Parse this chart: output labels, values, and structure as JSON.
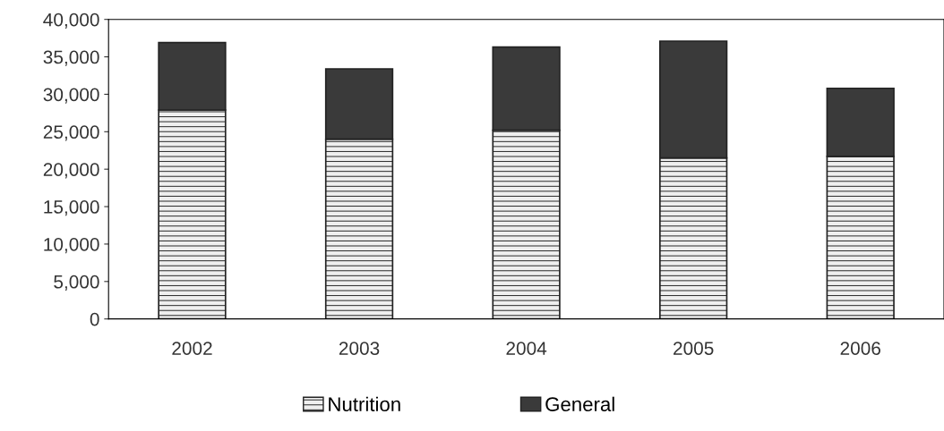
{
  "chart_data": {
    "type": "bar",
    "stacked": true,
    "categories": [
      "2002",
      "2003",
      "2004",
      "2005",
      "2006"
    ],
    "series": [
      {
        "name": "Nutrition",
        "color": "#efefef",
        "values": [
          27900,
          24000,
          25200,
          21500,
          21700
        ]
      },
      {
        "name": "General",
        "color": "#3a3a3a",
        "values": [
          9000,
          9400,
          11100,
          15600,
          9100
        ]
      }
    ],
    "ylim": [
      0,
      40000
    ],
    "yticks": [
      {
        "value": 0,
        "label": "0"
      },
      {
        "value": 5000,
        "label": "5,000"
      },
      {
        "value": 10000,
        "label": "10,000"
      },
      {
        "value": 15000,
        "label": "15,000"
      },
      {
        "value": 20000,
        "label": "20,000"
      },
      {
        "value": 25000,
        "label": "25,000"
      },
      {
        "value": 30000,
        "label": "30,000"
      },
      {
        "value": 35000,
        "label": "35,000"
      },
      {
        "value": 40000,
        "label": "40,000"
      }
    ],
    "grid": false,
    "legend": "bottom"
  }
}
